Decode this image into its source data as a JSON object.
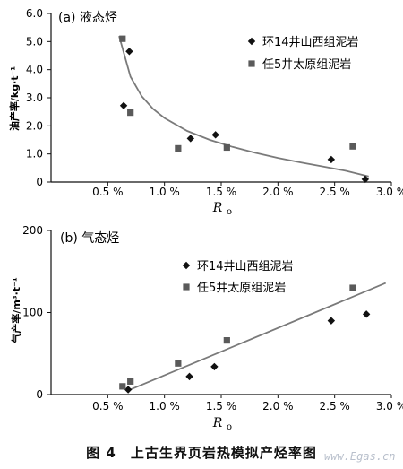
{
  "figure": {
    "caption": "图 4　上古生界页岩热模拟产烃率图",
    "watermark": "www.Egas.cn"
  },
  "chart_data": [
    {
      "type": "scatter",
      "panel_label": "(a) 液态烃",
      "ylabel": "油产率/kg·t⁻¹",
      "xlabel_main": "R",
      "xlabel_sub": "o",
      "xlim": [
        0,
        3.0
      ],
      "ylim": [
        0,
        6.0
      ],
      "xticks": [
        0.5,
        1.0,
        1.5,
        2.0,
        2.5,
        3.0
      ],
      "xtick_labels": [
        "0.5 %",
        "1.0 %",
        "1.5 %",
        "2.0 %",
        "2.5 %",
        "3.0 %"
      ],
      "yticks": [
        0,
        1.0,
        2.0,
        3.0,
        4.0,
        5.0,
        6.0
      ],
      "ytick_labels": [
        "0",
        "1.0",
        "2.0",
        "3.0",
        "4.0",
        "5.0",
        "6.0"
      ],
      "legend_position": "top-right",
      "series": [
        {
          "name": "环14井山西组泥岩",
          "marker": "diamond",
          "points": [
            [
              0.64,
              2.72
            ],
            [
              0.69,
              4.65
            ],
            [
              1.23,
              1.55
            ],
            [
              1.45,
              1.68
            ],
            [
              2.47,
              0.8
            ],
            [
              2.77,
              0.1
            ]
          ]
        },
        {
          "name": "任5井太原组泥岩",
          "marker": "square",
          "points": [
            [
              0.63,
              5.1
            ],
            [
              0.7,
              2.47
            ],
            [
              1.12,
              1.2
            ],
            [
              1.55,
              1.23
            ],
            [
              2.66,
              1.27
            ]
          ]
        }
      ],
      "trendline": {
        "kind": "power",
        "x": [
          0.6,
          0.7,
          0.8,
          0.9,
          1.0,
          1.2,
          1.4,
          1.6,
          1.8,
          2.0,
          2.2,
          2.4,
          2.6,
          2.8
        ],
        "y": [
          5.2,
          3.75,
          3.05,
          2.6,
          2.28,
          1.82,
          1.5,
          1.25,
          1.04,
          0.86,
          0.7,
          0.55,
          0.4,
          0.2
        ]
      }
    },
    {
      "type": "scatter",
      "panel_label": "(b) 气态烃",
      "ylabel": "气产率/m³·t⁻¹",
      "xlabel_main": "R",
      "xlabel_sub": "o",
      "xlim": [
        0,
        3.0
      ],
      "ylim": [
        0,
        200
      ],
      "xticks": [
        0.5,
        1.0,
        1.5,
        2.0,
        2.5,
        3.0
      ],
      "xtick_labels": [
        "0.5 %",
        "1.0 %",
        "1.5 %",
        "2.0 %",
        "2.5 %",
        "3.0 %"
      ],
      "yticks": [
        0,
        100,
        200
      ],
      "ytick_labels": [
        "0",
        "100",
        "200"
      ],
      "legend_position": "top-right",
      "series": [
        {
          "name": "环14井山西组泥岩",
          "marker": "diamond",
          "points": [
            [
              0.68,
              6
            ],
            [
              1.22,
              22
            ],
            [
              1.44,
              34
            ],
            [
              2.47,
              90
            ],
            [
              2.78,
              98
            ]
          ]
        },
        {
          "name": "任5井太原组泥岩",
          "marker": "square",
          "points": [
            [
              0.63,
              10
            ],
            [
              0.7,
              16
            ],
            [
              1.12,
              38
            ],
            [
              1.55,
              66
            ],
            [
              2.66,
              130
            ]
          ]
        }
      ],
      "trendline": {
        "kind": "linear",
        "x": [
          0.68,
          2.95
        ],
        "y": [
          5,
          136
        ]
      }
    }
  ]
}
